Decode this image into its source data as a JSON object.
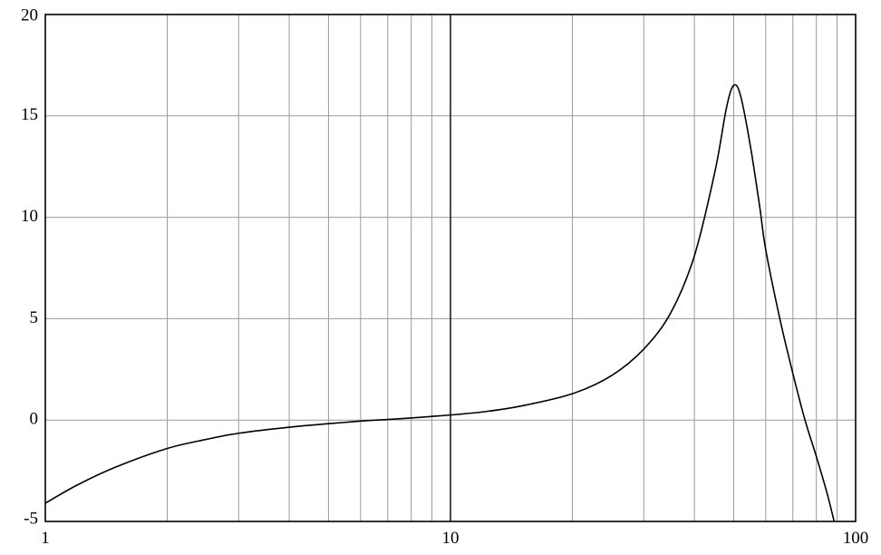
{
  "chart_data": {
    "type": "line",
    "title": "",
    "xlabel": "",
    "ylabel": "",
    "x_scale": "log",
    "xlim": [
      1,
      100
    ],
    "ylim": [
      -5,
      20
    ],
    "grid": true,
    "x_ticks": [
      1,
      10,
      100
    ],
    "x_tick_labels": [
      "1",
      "10",
      "100"
    ],
    "y_ticks": [
      -5,
      0,
      5,
      10,
      15,
      20
    ],
    "y_tick_labels": [
      "-5",
      "0",
      "5",
      "10",
      "15",
      "20"
    ],
    "series": [
      {
        "x": [
          1,
          1.2,
          1.5,
          2,
          2.5,
          3,
          4,
          5,
          6,
          7,
          8,
          9,
          10,
          12,
          15,
          20,
          25,
          30,
          35,
          40,
          45,
          48,
          50,
          52,
          55,
          58,
          60,
          65,
          70,
          75,
          80,
          85,
          88.5
        ],
        "y": [
          -4.1,
          -3.2,
          -2.3,
          -1.4,
          -0.95,
          -0.65,
          -0.35,
          -0.18,
          -0.05,
          0.03,
          0.1,
          0.18,
          0.25,
          0.4,
          0.7,
          1.3,
          2.2,
          3.5,
          5.3,
          8.1,
          12.3,
          15.4,
          16.5,
          16.0,
          13.5,
          10.5,
          8.4,
          5.0,
          2.3,
          0.0,
          -1.8,
          -3.6,
          -5.0
        ]
      }
    ],
    "colors": {
      "line": "#000000",
      "grid": "#9a9a9a",
      "frame": "#000000",
      "background": "#ffffff"
    }
  }
}
